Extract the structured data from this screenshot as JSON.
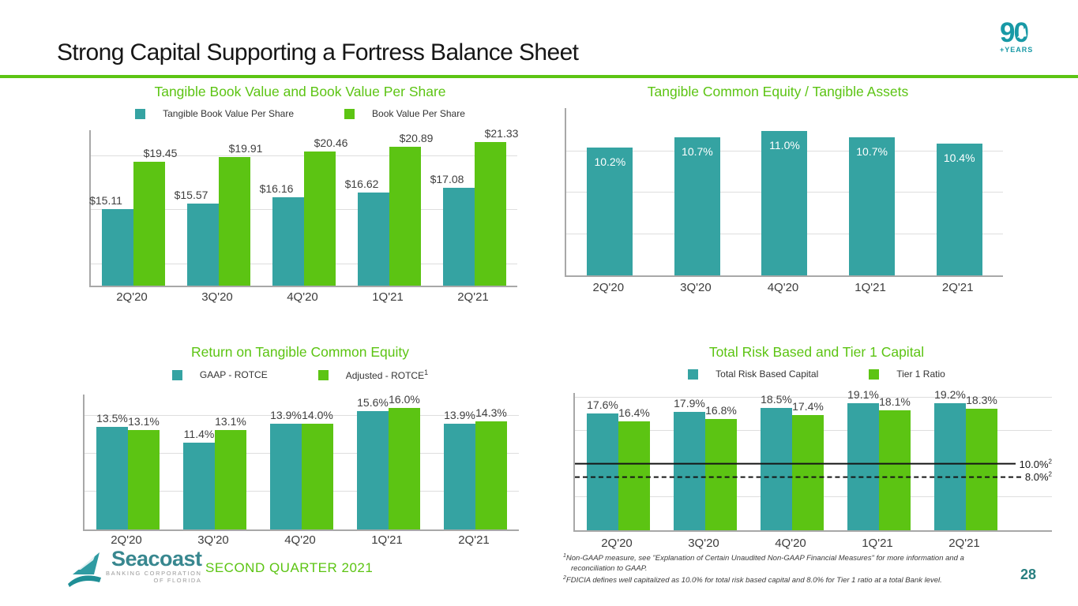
{
  "slide": {
    "title": "Strong Capital Supporting a Fortress Balance Sheet",
    "page_number": "28",
    "footer_tag": "SECOND QUARTER 2021",
    "badge": {
      "number": "90",
      "label": "+YEARS"
    },
    "logo": {
      "name": "Seacoast",
      "sub1": "BANKING CORPORATION",
      "sub2": "OF FLORIDA"
    }
  },
  "colors": {
    "teal": "#35a3a2",
    "green": "#5cc413",
    "title_green": "#5cc413",
    "axis": "#a8a8a8",
    "gridline": "#dedede",
    "bar_label": "#3f3f3f",
    "ref_line": "#161616",
    "page_teal": "#287f80"
  },
  "footnotes": [
    {
      "sup": "1",
      "text": "Non-GAAP measure, see \"Explanation of Certain Unaudited Non-GAAP Financial Measures\" for more information and a reconciliation to GAAP."
    },
    {
      "sup": "2",
      "text": "FDICIA defines well capitalized as 10.0% for total risk based capital and 8.0% for Tier 1 ratio at a total Bank level."
    }
  ],
  "chart_data": [
    {
      "type": "bar",
      "title": "Tangible Book Value and Book Value Per Share",
      "categories": [
        "2Q'20",
        "3Q'20",
        "4Q'20",
        "1Q'21",
        "2Q'21"
      ],
      "series": [
        {
          "name": "Tangible Book Value Per Share",
          "color": "teal",
          "values": [
            15.11,
            15.57,
            16.16,
            16.62,
            17.08
          ],
          "labels": [
            "$15.11",
            "$15.57",
            "$16.16",
            "$16.62",
            "$17.08"
          ]
        },
        {
          "name": "Book Value Per Share",
          "color": "green",
          "values": [
            19.45,
            19.91,
            20.46,
            20.89,
            21.33
          ],
          "labels": [
            "$19.45",
            "$19.91",
            "$20.46",
            "$20.89",
            "$21.33"
          ]
        }
      ],
      "ylim": [
        8,
        22.4
      ],
      "gridlines": [
        10,
        15,
        20
      ],
      "legend": true,
      "label_position": "above",
      "legend_position": "top"
    },
    {
      "type": "bar",
      "title": "Tangible Common Equity / Tangible Assets",
      "categories": [
        "2Q'20",
        "3Q'20",
        "4Q'20",
        "1Q'21",
        "2Q'21"
      ],
      "series": [
        {
          "color": "teal",
          "values": [
            10.2,
            10.7,
            11.0,
            10.7,
            10.4
          ],
          "labels": [
            "10.2%",
            "10.7%",
            "11.0%",
            "10.7%",
            "10.4%"
          ]
        }
      ],
      "ylim": [
        4,
        12.1
      ],
      "gridlines": [
        6,
        8,
        10
      ],
      "legend": false,
      "label_position": "inside"
    },
    {
      "type": "bar",
      "title": "Return on Tangible Common Equity",
      "categories": [
        "2Q'20",
        "3Q'20",
        "4Q'20",
        "1Q'21",
        "2Q'21"
      ],
      "series": [
        {
          "name": "GAAP - ROTCE",
          "color": "teal",
          "values": [
            13.5,
            11.4,
            13.9,
            15.6,
            13.9
          ],
          "labels": [
            "13.5%",
            "11.4%",
            "13.9%",
            "15.6%",
            "13.9%"
          ]
        },
        {
          "name": "Adjusted - ROTCE",
          "name_sup": "1",
          "color": "green",
          "values": [
            13.1,
            13.1,
            14.0,
            16.0,
            14.3
          ],
          "labels": [
            "13.1%",
            "13.1%",
            "14.0%",
            "16.0%",
            "14.3%"
          ]
        }
      ],
      "ylim": [
        0,
        17.8
      ],
      "gridlines": [
        5,
        10,
        15
      ],
      "legend": true,
      "label_position": "above",
      "legend_position": "top"
    },
    {
      "type": "bar",
      "title": "Total Risk Based and Tier 1 Capital",
      "categories": [
        "2Q'20",
        "3Q'20",
        "4Q'20",
        "1Q'21",
        "2Q'21"
      ],
      "series": [
        {
          "name": "Total Risk Based Capital",
          "color": "teal",
          "values": [
            17.6,
            17.9,
            18.5,
            19.1,
            19.2
          ],
          "labels": [
            "17.6%",
            "17.9%",
            "18.5%",
            "19.1%",
            "19.2%"
          ]
        },
        {
          "name": "Tier 1 Ratio",
          "color": "green",
          "values": [
            16.4,
            16.8,
            17.4,
            18.1,
            18.3
          ],
          "labels": [
            "16.4%",
            "16.8%",
            "17.4%",
            "18.1%",
            "18.3%"
          ]
        }
      ],
      "ylim": [
        0,
        20.7
      ],
      "gridlines": [
        5,
        15,
        20
      ],
      "ref_lines": [
        {
          "value": 10.0,
          "label": "10.0%",
          "label_sup": "2",
          "line_style": "solid"
        },
        {
          "value": 8.0,
          "label": "8.0%",
          "label_sup": "2",
          "line_style": "dashed"
        }
      ],
      "legend": true,
      "label_position": "above",
      "legend_position": "top"
    }
  ]
}
